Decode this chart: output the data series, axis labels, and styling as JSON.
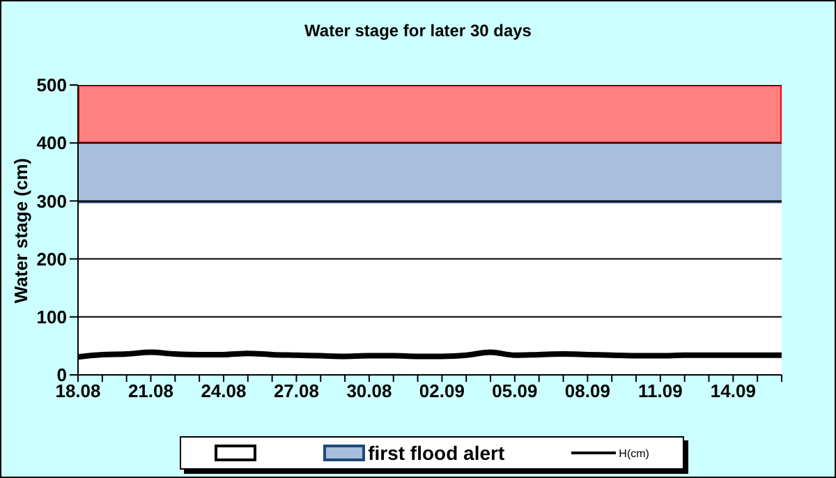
{
  "chart_data": {
    "type": "area",
    "title": "Water stage for later 30 days",
    "ylabel": "Water stage (cm)",
    "x": [
      "--08-18",
      "--08-19",
      "--08-20",
      "--08-21",
      "--08-22",
      "--08-23",
      "--08-24",
      "--08-25",
      "--08-26",
      "--08-27",
      "--08-28",
      "--08-29",
      "--08-30",
      "--08-31",
      "--09-01",
      "--09-02",
      "--09-03",
      "--09-04",
      "--09-05",
      "--09-06",
      "--09-07",
      "--09-08",
      "--09-09",
      "--09-10",
      "--09-11",
      "--09-12",
      "--09-13",
      "--09-14",
      "--09-15",
      "--09-16"
    ],
    "series": [
      {
        "color": "#ffffff",
        "values": [
          300,
          300,
          300,
          300,
          300,
          300,
          300,
          300,
          300,
          300,
          300,
          300,
          300,
          300,
          300,
          300,
          300,
          300,
          300,
          300,
          300,
          300,
          300,
          300,
          300,
          300,
          300,
          300,
          300,
          300
        ]
      },
      {
        "name": "first flood alert",
        "color": "#a7bfdc",
        "values": [
          100,
          100,
          100,
          100,
          100,
          100,
          100,
          100,
          100,
          100,
          100,
          100,
          100,
          100,
          100,
          100,
          100,
          100,
          100,
          100,
          100,
          100,
          100,
          100,
          100,
          100,
          100,
          100,
          100,
          100
        ]
      },
      {
        "type": "line",
        "name": "H(cm)",
        "color": "#000000",
        "values": [
          31,
          35,
          36,
          39,
          36,
          35,
          35,
          37,
          35,
          34,
          33,
          32,
          33,
          33,
          32,
          32,
          34,
          39,
          34,
          35,
          36,
          35,
          34,
          33,
          33,
          34,
          34,
          34,
          34,
          34
        ]
      }
    ],
    "stacked": true,
    "bands": [
      {
        "axis": "y",
        "from": 400,
        "to": 500,
        "color": "#ff8080"
      }
    ],
    "xlim": [
      "--08-18",
      "--09-16"
    ],
    "xticks": [
      {
        "value": "--08-18",
        "label": "18.08"
      },
      {
        "value": "--08-19",
        "label": null
      },
      {
        "value": "--08-20",
        "label": null
      },
      {
        "value": "--08-21",
        "label": "21.08"
      },
      {
        "value": "--08-22",
        "label": null
      },
      {
        "value": "--08-23",
        "label": null
      },
      {
        "value": "--08-24",
        "label": "24.08"
      },
      {
        "value": "--08-25",
        "label": null
      },
      {
        "value": "--08-26",
        "label": null
      },
      {
        "value": "--08-27",
        "label": "27.08"
      },
      {
        "value": "--08-28",
        "label": null
      },
      {
        "value": "--08-29",
        "label": null
      },
      {
        "value": "--08-30",
        "label": "30.08"
      },
      {
        "value": "--08-31",
        "label": null
      },
      {
        "value": "--09-01",
        "label": null
      },
      {
        "value": "--09-02",
        "label": "02.09"
      },
      {
        "value": "--09-03",
        "label": null
      },
      {
        "value": "--09-04",
        "label": null
      },
      {
        "value": "--09-05",
        "label": "05.09"
      },
      {
        "value": "--09-06",
        "label": null
      },
      {
        "value": "--09-07",
        "label": null
      },
      {
        "value": "--09-08",
        "label": "08.09"
      },
      {
        "value": "--09-09",
        "label": null
      },
      {
        "value": "--09-10",
        "label": null
      },
      {
        "value": "--09-11",
        "label": "11.09"
      },
      {
        "value": "--09-12",
        "label": null
      },
      {
        "value": "--09-13",
        "label": null
      },
      {
        "value": "--09-14",
        "label": "14.09"
      },
      {
        "value": "--09-15",
        "label": null
      },
      {
        "value": "--09-16",
        "label": null
      }
    ],
    "ylim": [
      0,
      500
    ],
    "yticks": [
      0,
      100,
      200,
      300,
      400,
      500
    ],
    "grid": "y",
    "legend": "bottom",
    "line_style": "solid",
    "marker": "none"
  }
}
